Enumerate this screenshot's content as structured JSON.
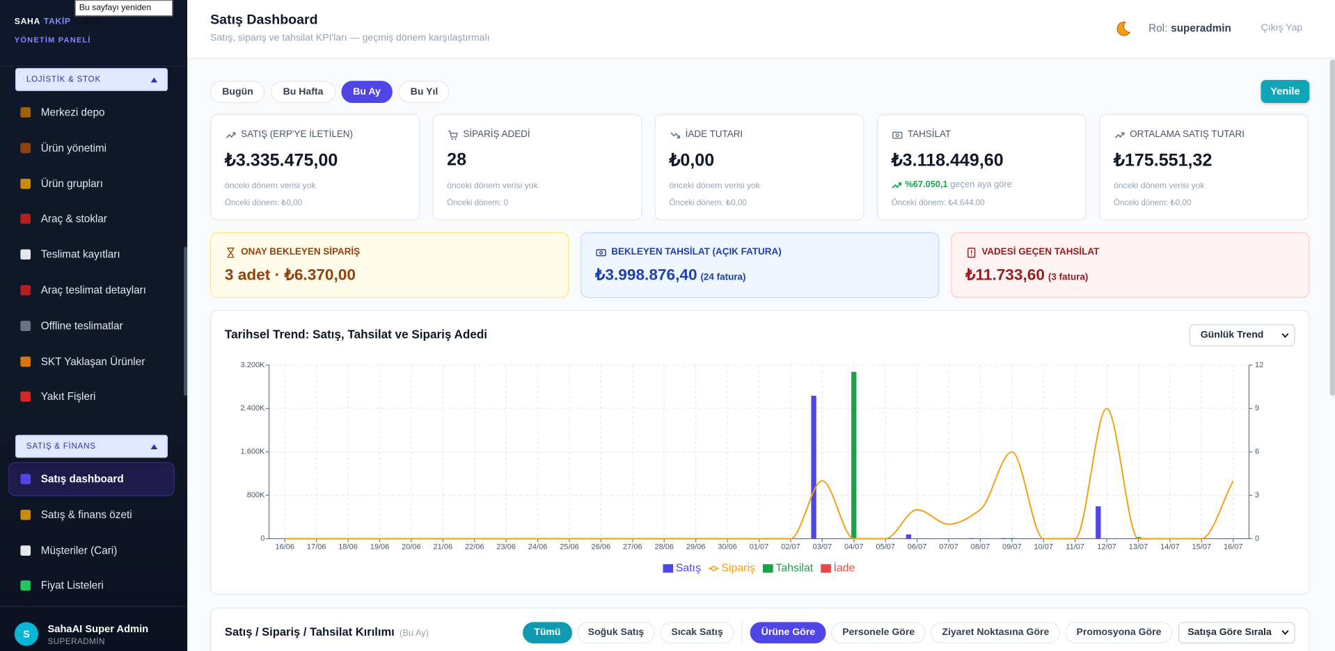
{
  "tooltip": "Bu sayfayı yeniden yükle",
  "sidebar": {
    "brand": {
      "name": "SAHA",
      "accent": "TAKİP",
      "subtitle": "YÖNETİM PANELİ"
    },
    "sections": [
      {
        "title": "LOJİSTİK & STOK",
        "items": [
          {
            "label": "Merkezi depo"
          },
          {
            "label": "Ürün yönetimi"
          },
          {
            "label": "Ürün grupları"
          },
          {
            "label": "Araç & stoklar"
          },
          {
            "label": "Teslimat kayıtları"
          },
          {
            "label": "Araç teslimat detayları"
          },
          {
            "label": "Offline teslimatlar"
          },
          {
            "label": "SKT Yaklaşan Ürünler"
          },
          {
            "label": "Yakıt Fişleri"
          }
        ]
      },
      {
        "title": "SATIŞ & FİNANS",
        "items": [
          {
            "label": "Satış dashboard",
            "active": true
          },
          {
            "label": "Satış & finans özeti"
          },
          {
            "label": "Müşteriler (Cari)"
          },
          {
            "label": "Fiyat Listeleri"
          }
        ]
      }
    ],
    "user": {
      "initial": "S",
      "name": "SahaAI Super Admin",
      "role": "SUPERADMİN"
    }
  },
  "header": {
    "title": "Satış Dashboard",
    "subtitle": "Satış, sipariş ve tahsilat KPI'ları — geçmiş dönem karşılaştırmalı",
    "role_label": "Rol:",
    "role": "superadmin",
    "logout": "Çıkış Yap"
  },
  "periods": [
    {
      "label": "Bugün"
    },
    {
      "label": "Bu Hafta"
    },
    {
      "label": "Bu Ay",
      "active": true
    },
    {
      "label": "Bu Yıl"
    }
  ],
  "refresh": "Yenile",
  "kpis": [
    {
      "label": "SATIŞ (ERP'YE İLETİLEN)",
      "value": "₺3.335.475,00",
      "note": "önceki dönem verisi yok",
      "previous": "Önceki dönem: ₺0,00"
    },
    {
      "label": "SİPARİŞ ADEDİ",
      "value": "28",
      "note": "önceki dönem verisi yok",
      "previous": "Önceki dönem: 0"
    },
    {
      "label": "İADE TUTARI",
      "value": "₺0,00",
      "note": "önceki dönem verisi yok",
      "previous": "Önceki dönem: ₺0,00"
    },
    {
      "label": "TAHSİLAT",
      "value": "₺3.118.449,60",
      "change": "%67.050,1",
      "change_text": "geçen aya göre",
      "previous": "Önceki dönem: ₺4.644,00"
    },
    {
      "label": "ORTALAMA SATIŞ TUTARI",
      "value": "₺175.551,32",
      "note": "önceki dönem verisi yok",
      "previous": "Önceki dönem: ₺0,00"
    }
  ],
  "alerts": [
    {
      "label": "ONAY BEKLEYEN SİPARİŞ",
      "value": "3 adet · ₺6.370,00"
    },
    {
      "label": "BEKLEYEN TAHSİLAT (AÇIK FATURA)",
      "value": "₺3.998.876,40",
      "suffix": "(24 fatura)"
    },
    {
      "label": "VADESİ GEÇEN TAHSİLAT",
      "value": "₺11.733,60",
      "suffix": "(3 fatura)"
    }
  ],
  "trend_view": "Günlük Trend",
  "chart_data": {
    "type": "bar",
    "title": "Tarihsel Trend: Satış, Tahsilat ve Sipariş Adedi",
    "categories": [
      "16/06",
      "17/06",
      "18/06",
      "19/06",
      "20/06",
      "21/06",
      "22/06",
      "23/06",
      "24/06",
      "25/06",
      "26/06",
      "27/06",
      "28/06",
      "29/06",
      "30/06",
      "01/07",
      "02/07",
      "03/07",
      "04/07",
      "05/07",
      "06/07",
      "07/07",
      "08/07",
      "09/07",
      "10/07",
      "11/07",
      "12/07",
      "13/07",
      "14/07",
      "15/07",
      "16/07"
    ],
    "series": [
      {
        "name": "Satış",
        "color": "#4f46e5",
        "axis": "y",
        "values": [
          0,
          0,
          0,
          0,
          0,
          0,
          0,
          0,
          0,
          0,
          0,
          0,
          0,
          0,
          0,
          0,
          0,
          2635000,
          0,
          0,
          78000,
          0,
          10000,
          10000,
          0,
          0,
          596000,
          0,
          0,
          0,
          0
        ]
      },
      {
        "name": "Sipariş",
        "color": "#f59e0b",
        "axis": "y2",
        "type": "line",
        "values": [
          0,
          0,
          0,
          0,
          0,
          0,
          0,
          0,
          0,
          0,
          0,
          0,
          0,
          0,
          0,
          0,
          0,
          4,
          0,
          0,
          2,
          1,
          2,
          6,
          0,
          0,
          9,
          0,
          0,
          0,
          4
        ]
      },
      {
        "name": "Tahsilat",
        "color": "#16a34a",
        "axis": "y",
        "values": [
          0,
          0,
          0,
          0,
          0,
          0,
          0,
          0,
          0,
          0,
          0,
          0,
          0,
          0,
          0,
          0,
          0,
          0,
          3075000,
          0,
          0,
          0,
          0,
          12000,
          0,
          0,
          0,
          31000,
          0,
          0,
          0
        ]
      },
      {
        "name": "İade",
        "color": "#ef4444",
        "axis": "y",
        "values": [
          0,
          0,
          0,
          0,
          0,
          0,
          0,
          0,
          0,
          0,
          0,
          0,
          0,
          0,
          0,
          0,
          0,
          0,
          0,
          0,
          0,
          0,
          0,
          0,
          0,
          0,
          0,
          0,
          0,
          0,
          0
        ]
      }
    ],
    "ylim": [
      0,
      3200000
    ],
    "yticks": [
      0,
      {
        "value": 800000,
        "label": "800K"
      },
      {
        "value": 1600000,
        "label": "1.600K"
      },
      {
        "value": 2400000,
        "label": "2.400K"
      },
      {
        "value": 3200000,
        "label": "3.200K"
      }
    ],
    "y2lim": [
      0,
      12
    ],
    "y2ticks": [
      0,
      3,
      6,
      9,
      12
    ],
    "grid": true,
    "legend": "bottom"
  },
  "breakdown": {
    "title": "Satış / Sipariş / Tahsilat Kırılımı",
    "period": "(Bu Ay)",
    "segments": [
      {
        "label": "Tümü",
        "active": true
      },
      {
        "label": "Soğuk Satış"
      },
      {
        "label": "Sıcak Satış"
      }
    ],
    "groupings": [
      {
        "label": "Ürüne Göre",
        "active": true
      },
      {
        "label": "Personele Göre"
      },
      {
        "label": "Ziyaret Noktasına Göre"
      },
      {
        "label": "Promosyona Göre"
      }
    ],
    "sort": "Satışa Göre Sırala"
  }
}
